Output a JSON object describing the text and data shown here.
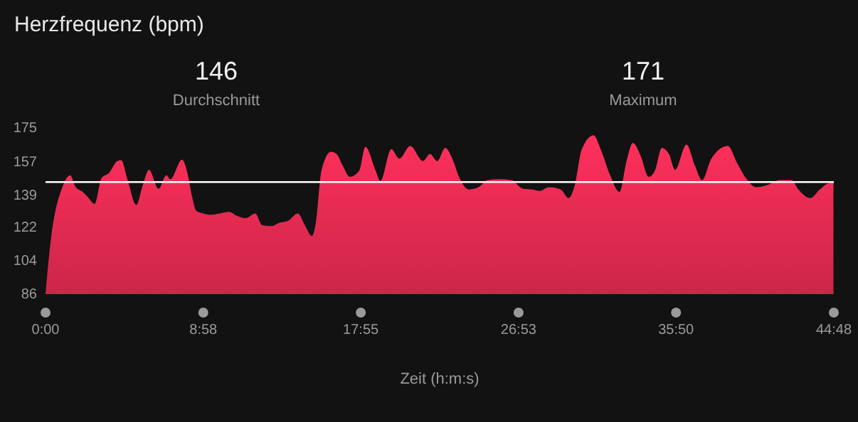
{
  "chart_data": {
    "type": "area",
    "title": "Herzfrequenz (bpm)",
    "xlabel": "Zeit (h:m:s)",
    "annotations": [
      "146",
      "Durchschnitt",
      "171",
      "Maximum"
    ],
    "x": [
      0,
      0.32,
      0.59,
      0.86,
      1.4,
      1.72,
      2.12,
      2.39,
      2.79,
      3.19,
      3.6,
      4.08,
      4.3,
      4.67,
      5.16,
      5.53,
      5.88,
      6.42,
      6.87,
      7.09,
      7.76,
      8.03,
      8.3,
      8.57,
      8.97,
      9.37,
      9.91,
      10.44,
      10.85,
      11.38,
      11.92,
      12.32,
      12.86,
      13.26,
      13.8,
      14.34,
      14.74,
      15.14,
      15.36,
      15.68,
      16.22,
      16.54,
      16.89,
      17.29,
      17.83,
      18.18,
      18.76,
      19.03,
      19.65,
      20.11,
      20.73,
      21.45,
      21.85,
      22.26,
      22.72,
      23.12,
      23.52,
      24.06,
      24.6,
      25.13,
      25.8,
      26.47,
      27.14,
      27.67,
      28.08,
      28.61,
      29.28,
      29.73,
      30.08,
      30.48,
      31.15,
      31.55,
      32.09,
      32.62,
      33.02,
      33.38,
      33.83,
      34.28,
      34.63,
      35.03,
      35.43,
      35.78,
      36.43,
      36.91,
      37.31,
      37.84,
      38.78,
      39.32,
      39.85,
      40.39,
      41.05,
      41.73,
      42.39,
      42.79,
      43.46,
      44.0,
      44.4,
      44.78
    ],
    "series": [
      {
        "color": "#e22a50",
        "values": [
          86,
          116.5,
          131.8,
          140.7,
          149.6,
          143.2,
          140.7,
          138.1,
          134.3,
          148.3,
          150.8,
          157.2,
          157.7,
          147,
          133.8,
          144.5,
          152.6,
          142.4,
          149.6,
          147.5,
          158,
          152.1,
          139.4,
          130.5,
          129.2,
          128.5,
          129.2,
          130,
          128,
          126.7,
          129.2,
          122.9,
          122.4,
          124.1,
          125.4,
          129.2,
          122.9,
          117,
          124.1,
          152.1,
          162.3,
          161,
          154.7,
          148.8,
          152.1,
          164.8,
          152.1,
          146.5,
          163.6,
          158.5,
          165.3,
          157.2,
          161,
          157.2,
          164.3,
          158.5,
          148.3,
          142,
          143.2,
          147,
          147.5,
          147,
          142.4,
          142,
          141.2,
          143.2,
          142,
          137.4,
          144.5,
          163.6,
          171,
          163.6,
          149.6,
          140.7,
          157.2,
          166.9,
          159.8,
          148.8,
          152.1,
          164.3,
          161,
          152.6,
          166.1,
          154.7,
          147,
          158.5,
          165.3,
          155.9,
          147.5,
          143.2,
          144.5,
          147,
          147,
          142,
          137.4,
          142,
          145,
          145.8
        ]
      }
    ],
    "xlim": [
      0,
      44.8
    ],
    "xticks": [
      {
        "value": 0,
        "label": "0:00"
      },
      {
        "value": 8.967,
        "label": "8:58"
      },
      {
        "value": 17.917,
        "label": "17:55"
      },
      {
        "value": 26.883,
        "label": "26:53"
      },
      {
        "value": 35.833,
        "label": "35:50"
      },
      {
        "value": 44.8,
        "label": "44:48"
      }
    ],
    "ylim": [
      86,
      175
    ],
    "yticks": [
      86,
      104,
      122,
      139,
      157,
      175
    ],
    "ref_lines": [
      {
        "axis": "y",
        "value": 146,
        "color": "#ffffff"
      }
    ],
    "grid": false
  }
}
